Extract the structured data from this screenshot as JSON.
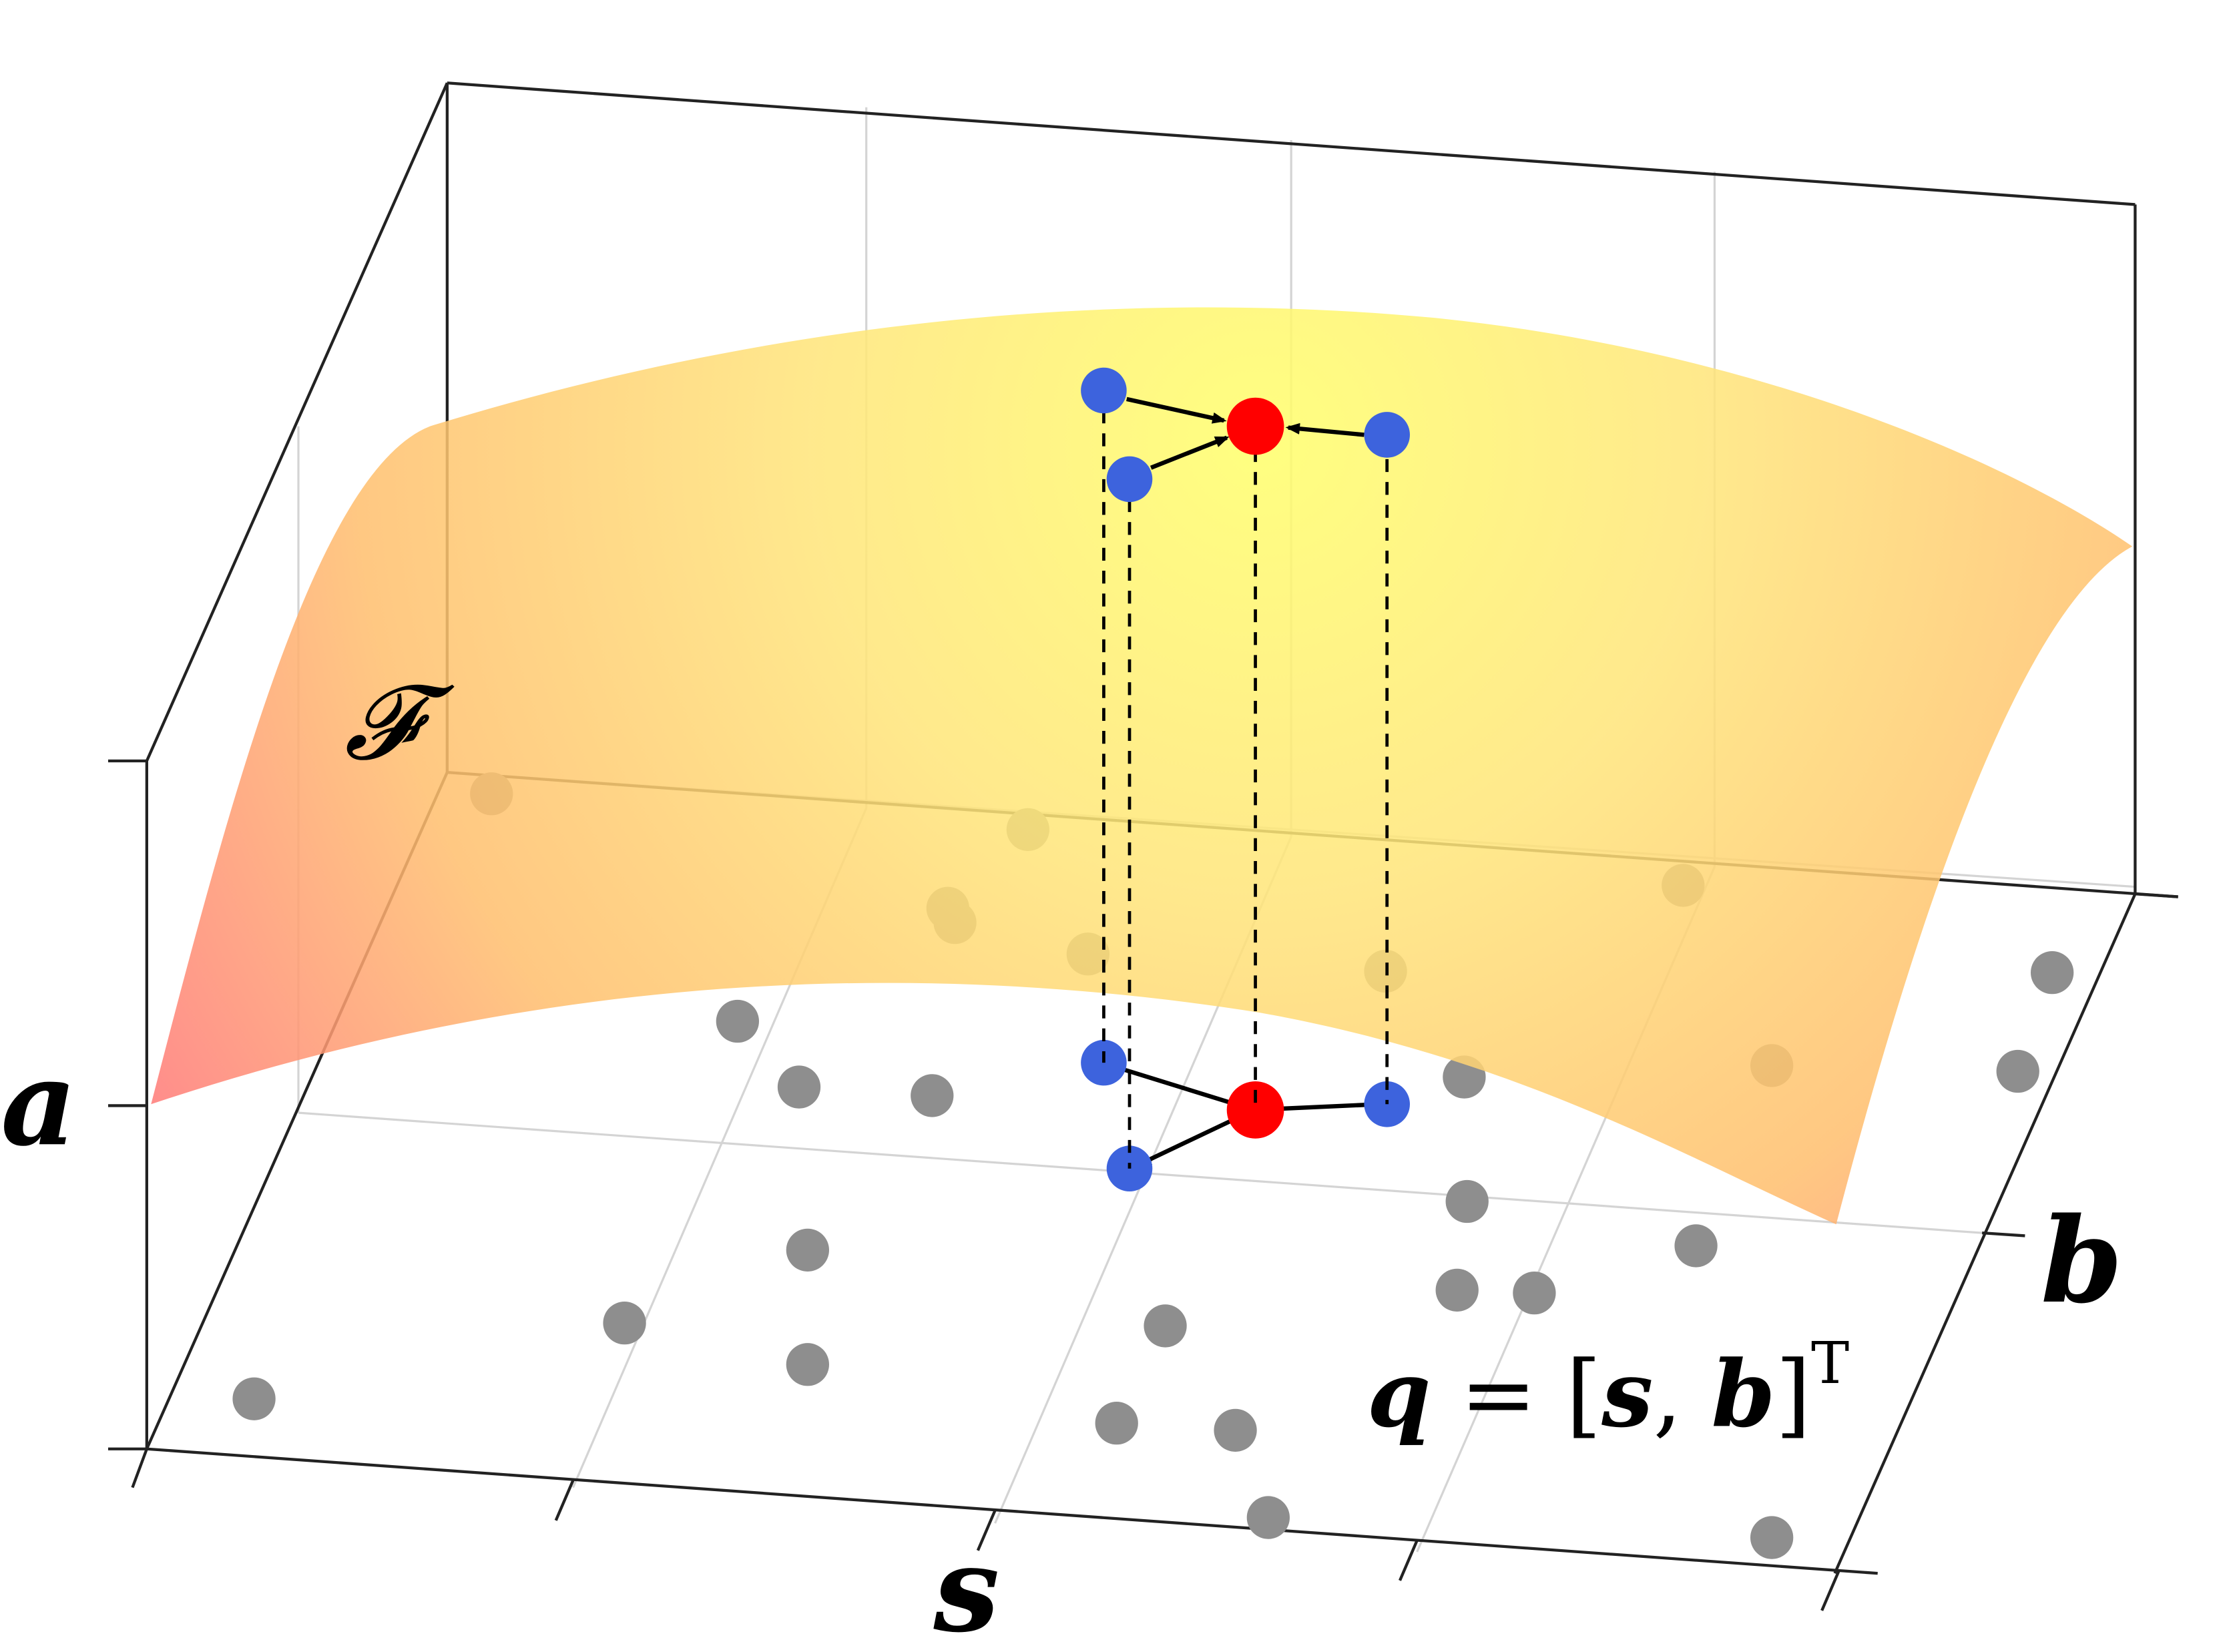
{
  "labels": {
    "axis_a": "a",
    "axis_s": "s",
    "axis_b": "b",
    "surface": "𝓕",
    "equation_q": "q",
    "equation_eq": " = [",
    "equation_s": "s",
    "equation_comma": ", ",
    "equation_b": "b",
    "equation_close": "]",
    "equation_sup": "T"
  },
  "colors": {
    "surface_top": "#ffff66",
    "surface_mid": "#ffc46b",
    "surface_edge": "#ff7575",
    "center_point": "#ff0000",
    "neighbor_point": "#3d63dd",
    "sample_point": "#8c8c8c",
    "axes": "#222222",
    "grid": "#cfcfcf"
  },
  "icons": {
    "center": "red-circle",
    "neighbor": "blue-circle",
    "sample": "gray-circle"
  }
}
